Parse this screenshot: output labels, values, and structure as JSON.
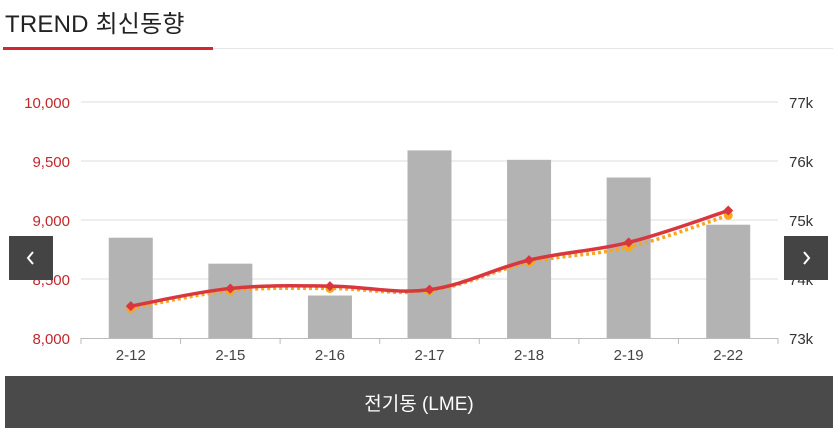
{
  "header": {
    "title": "TREND 최신동향"
  },
  "nav": {
    "prev_icon": "chevron-left-icon",
    "next_icon": "chevron-right-icon"
  },
  "footer": {
    "label": "전기동 (LME)"
  },
  "colors": {
    "bar": "#b3b3b3",
    "line_main": "#d9363e",
    "line_dotted": "#f5a623",
    "left_axis_text": "#c0282e",
    "right_axis_text": "#333333",
    "grid": "#dedede",
    "footer_bg": "#4a4a4a",
    "accent": "#d0282e"
  },
  "chart_data": {
    "type": "bar",
    "title": "",
    "categories": [
      "2-12",
      "2-15",
      "2-16",
      "2-17",
      "2-18",
      "2-19",
      "2-22"
    ],
    "y_left": {
      "ticks": [
        "10,000",
        "9,500",
        "9,000",
        "8,500",
        "8,000"
      ],
      "tick_values": [
        10000,
        9500,
        9000,
        8500,
        8000
      ],
      "range": [
        8000,
        10000
      ]
    },
    "y_right": {
      "ticks": [
        "77k",
        "76k",
        "75k",
        "74k",
        "73k"
      ],
      "tick_values": [
        77000,
        76000,
        75000,
        74000,
        73000
      ],
      "range": [
        73000,
        77000
      ]
    },
    "grid": true,
    "series": [
      {
        "type": "bar",
        "axis": "left",
        "values": [
          8850,
          8630,
          8360,
          9590,
          9510,
          9360,
          8960
        ]
      },
      {
        "type": "line",
        "axis": "left",
        "style": "solid",
        "values": [
          8270,
          8420,
          8440,
          8410,
          8660,
          8810,
          9080
        ]
      },
      {
        "type": "line",
        "axis": "left",
        "style": "dotted",
        "values": [
          8250,
          8400,
          8420,
          8400,
          8640,
          8770,
          9040
        ]
      }
    ]
  }
}
